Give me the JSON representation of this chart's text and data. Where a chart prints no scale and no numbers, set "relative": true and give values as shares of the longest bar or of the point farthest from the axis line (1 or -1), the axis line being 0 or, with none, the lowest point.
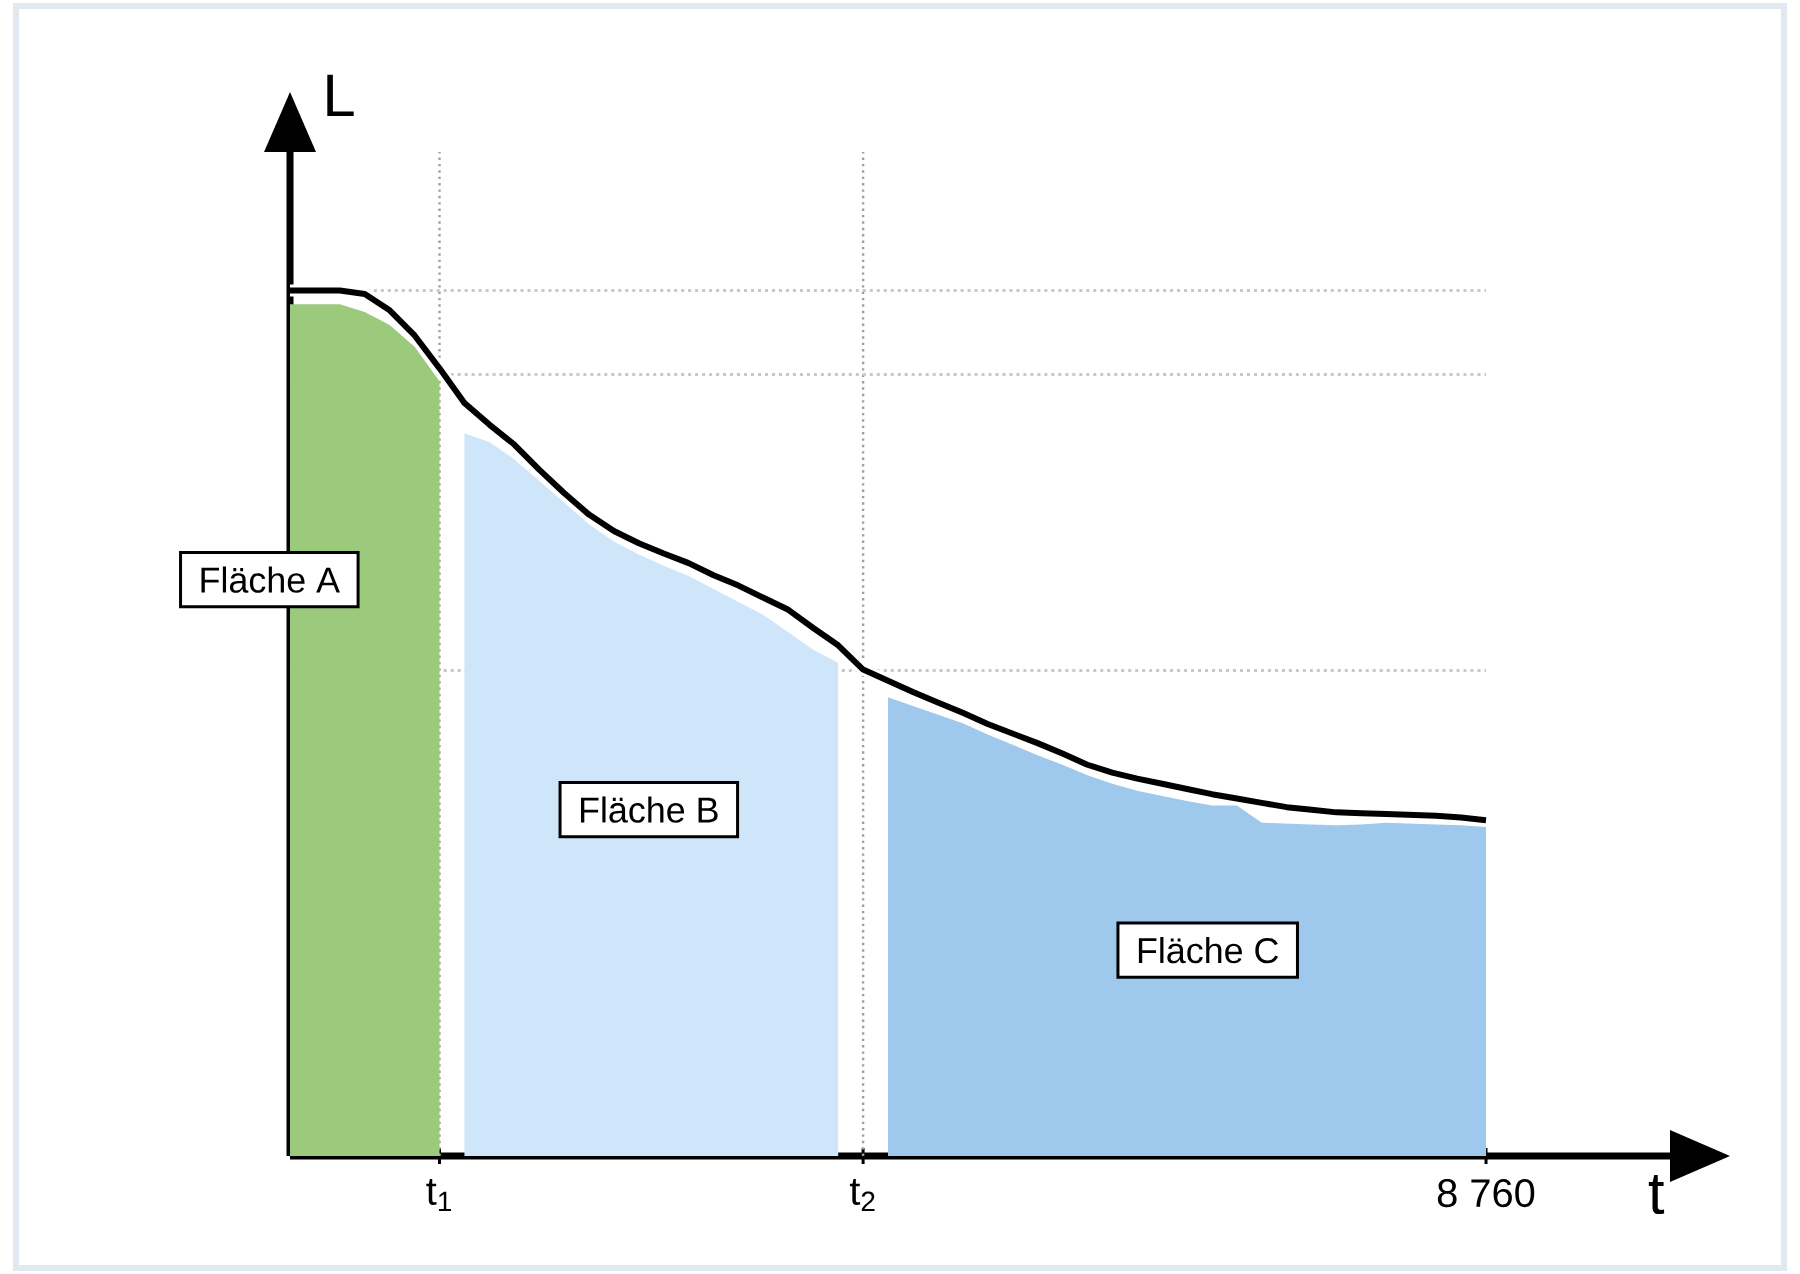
{
  "chart_data": {
    "type": "area",
    "relative": true,
    "xlabel": "t",
    "ylabel": "L",
    "categories": [
      null,
      null,
      null,
      null,
      null,
      null,
      "t$_{1}$",
      null,
      null,
      null,
      null,
      null,
      null,
      null,
      null,
      null,
      null,
      null,
      null,
      null,
      null,
      null,
      null,
      "t$_{2}$",
      null,
      null,
      null,
      null,
      null,
      null,
      null,
      null,
      null,
      null,
      null,
      null,
      null,
      null,
      null,
      null,
      null,
      null,
      null,
      null,
      null,
      null,
      null,
      null,
      "8 760"
    ],
    "series": [
      {
        "color": "#9cca7c",
        "values": [
          0.984,
          0.984,
          0.984,
          0.975,
          0.96,
          0.935,
          0.895,
          null,
          null,
          null,
          null,
          null,
          null,
          null,
          null,
          null,
          null,
          null,
          null,
          null,
          null,
          null,
          null,
          null,
          null,
          null,
          null,
          null,
          null,
          null,
          null,
          null,
          null,
          null,
          null,
          null,
          null,
          null,
          null,
          null,
          null,
          null,
          null,
          null,
          null,
          null,
          null,
          null,
          null
        ]
      },
      {
        "color": "#cfe6fa",
        "values": [
          null,
          null,
          null,
          null,
          null,
          null,
          null,
          0.835,
          0.825,
          0.805,
          0.78,
          0.755,
          0.73,
          0.71,
          0.695,
          0.682,
          0.67,
          0.655,
          0.64,
          0.625,
          0.605,
          0.585,
          0.57,
          null,
          null,
          null,
          null,
          null,
          null,
          null,
          null,
          null,
          null,
          null,
          null,
          null,
          null,
          null,
          null,
          null,
          null,
          null,
          null,
          null,
          null,
          null,
          null,
          null,
          null
        ]
      },
      {
        "color": "#9ec8ec",
        "values": [
          null,
          null,
          null,
          null,
          null,
          null,
          null,
          null,
          null,
          null,
          null,
          null,
          null,
          null,
          null,
          null,
          null,
          null,
          null,
          null,
          null,
          null,
          null,
          null,
          0.53,
          0.52,
          0.51,
          0.5,
          0.487,
          0.475,
          0.463,
          0.452,
          0.44,
          0.43,
          0.422,
          0.416,
          0.41,
          0.405,
          0.405,
          0.385,
          0.384,
          0.383,
          0.382,
          0.383,
          0.385,
          0.384,
          0.383,
          0.382,
          0.38
        ]
      },
      {
        "type": "line",
        "color": "#000000",
        "values": [
          1.0,
          1.0,
          1.0,
          0.996,
          0.977,
          0.948,
          0.91,
          0.87,
          0.845,
          0.822,
          0.793,
          0.766,
          0.741,
          0.722,
          0.708,
          0.696,
          0.685,
          0.671,
          0.659,
          0.645,
          0.631,
          0.61,
          0.59,
          0.562,
          0.549,
          0.536,
          0.524,
          0.512,
          0.499,
          0.488,
          0.477,
          0.465,
          0.452,
          0.443,
          0.436,
          0.43,
          0.424,
          0.418,
          0.413,
          0.408,
          0.403,
          0.4,
          0.397,
          0.396,
          0.395,
          0.394,
          0.393,
          0.391,
          0.388
        ]
      }
    ],
    "ref_lines": [
      {
        "axis": "x",
        "value": "t$_{1}$",
        "line_style": "dotted",
        "color": "#a0a0a0"
      },
      {
        "axis": "x",
        "value": "t$_{2}$",
        "line_style": "dotted",
        "color": "#a0a0a0"
      },
      {
        "axis": "y",
        "value": 1.0,
        "line_style": "dotted",
        "color": "#c8c8c8"
      },
      {
        "axis": "y",
        "value": 0.903,
        "line_style": "dotted",
        "color": "#c8c8c8"
      },
      {
        "axis": "y",
        "value": 0.561,
        "line_style": "dotted",
        "color": "#c8c8c8"
      }
    ],
    "annotations": [
      "Fläche A",
      "Fläche B",
      "Fläche C"
    ]
  }
}
